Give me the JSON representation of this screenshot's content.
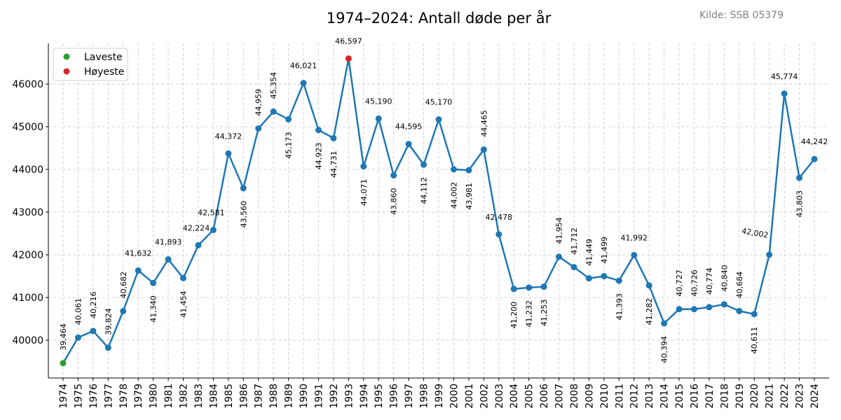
{
  "chart_data": {
    "type": "line",
    "title": "1974–2024: Antall døde per år",
    "source": "Kilde: SSB 05379",
    "xlabel": "",
    "ylabel": "",
    "x": [
      1974,
      1975,
      1976,
      1977,
      1978,
      1979,
      1980,
      1981,
      1982,
      1983,
      1984,
      1985,
      1986,
      1987,
      1988,
      1989,
      1990,
      1991,
      1992,
      1993,
      1994,
      1995,
      1996,
      1997,
      1998,
      1999,
      2000,
      2001,
      2002,
      2003,
      2004,
      2005,
      2006,
      2007,
      2008,
      2009,
      2010,
      2011,
      2012,
      2013,
      2014,
      2015,
      2016,
      2017,
      2018,
      2019,
      2020,
      2021,
      2022,
      2023,
      2024
    ],
    "values": [
      39464,
      40061,
      40216,
      39824,
      40682,
      41632,
      41340,
      41893,
      41454,
      42224,
      42581,
      44372,
      43560,
      44959,
      45354,
      45173,
      46021,
      44923,
      44731,
      46597,
      44071,
      45190,
      43860,
      44595,
      44112,
      45170,
      44002,
      43981,
      44465,
      42478,
      41200,
      41232,
      41253,
      41954,
      41712,
      41449,
      41499,
      41393,
      41992,
      41282,
      40394,
      40727,
      40726,
      40774,
      40840,
      40684,
      40611,
      42002,
      45774,
      43803,
      44242
    ],
    "ylim": [
      39115,
      46950
    ],
    "xlim": [
      1973,
      2025
    ],
    "yticks": [
      40000,
      41000,
      42000,
      43000,
      44000,
      45000,
      46000
    ],
    "grid": true,
    "line_color": "#1f77b4",
    "legend": {
      "placement": "top-left",
      "entries": [
        {
          "name": "Laveste",
          "color": "#2ca02c",
          "year": 1974
        },
        {
          "name": "Høyeste",
          "color": "#d62728",
          "year": 1993
        }
      ]
    }
  }
}
